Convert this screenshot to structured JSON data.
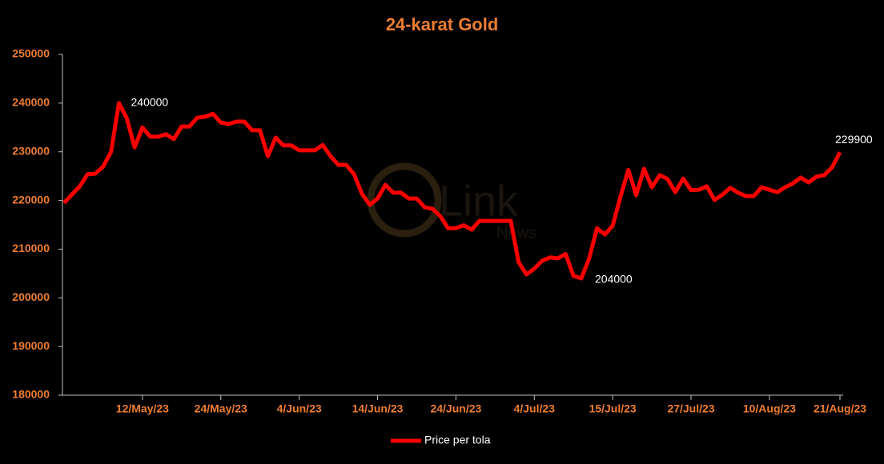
{
  "chart_data": {
    "type": "line",
    "title": "24-karat Gold",
    "watermark": {
      "main": "Link",
      "sub": "News"
    },
    "categories": [
      null,
      null,
      null,
      null,
      null,
      null,
      null,
      null,
      null,
      null,
      "12/May/23",
      null,
      null,
      null,
      null,
      null,
      null,
      null,
      null,
      null,
      "24/May/23",
      null,
      null,
      null,
      null,
      null,
      null,
      null,
      null,
      null,
      "4/Jun/23",
      null,
      null,
      null,
      null,
      null,
      null,
      null,
      null,
      null,
      "14/Jun/23",
      null,
      null,
      null,
      null,
      null,
      null,
      null,
      null,
      null,
      "24/Jun/23",
      null,
      null,
      null,
      null,
      null,
      null,
      null,
      null,
      null,
      "4/Jul/23",
      null,
      null,
      null,
      null,
      null,
      null,
      null,
      null,
      null,
      "15/Jul/23",
      null,
      null,
      null,
      null,
      null,
      null,
      null,
      null,
      null,
      "27/Jul/23",
      null,
      null,
      null,
      null,
      null,
      null,
      null,
      null,
      null,
      "10/Aug/23",
      null,
      null,
      null,
      null,
      null,
      null,
      null,
      null,
      "21/Aug/23"
    ],
    "series": [
      {
        "name": "Price per tola",
        "color": "#ff0000",
        "values": [
          219500,
          221200,
          222900,
          225400,
          225500,
          227000,
          230000,
          240000,
          236900,
          230900,
          235000,
          233100,
          233100,
          233600,
          232600,
          235200,
          235200,
          237000,
          237200,
          237800,
          236000,
          235700,
          236200,
          236200,
          234400,
          234400,
          229100,
          232900,
          231300,
          231300,
          230300,
          230300,
          230300,
          231400,
          229100,
          227300,
          227300,
          225400,
          221400,
          219100,
          220400,
          223200,
          221600,
          221600,
          220400,
          220400,
          218600,
          218300,
          216800,
          214300,
          214300,
          214900,
          214000,
          215800,
          215800,
          215800,
          215800,
          215800,
          207300,
          204800,
          206000,
          207600,
          208300,
          208100,
          209000,
          204500,
          204000,
          208100,
          214300,
          213000,
          214800,
          220800,
          226300,
          221100,
          226500,
          222700,
          225200,
          224400,
          221700,
          224500,
          222100,
          222200,
          222900,
          220100,
          221200,
          222600,
          221600,
          220900,
          220900,
          222700,
          222200,
          221700,
          222700,
          223500,
          224700,
          223700,
          224900,
          225200,
          226800,
          229900
        ]
      }
    ],
    "ylim": [
      180000,
      250000
    ],
    "yticks": [
      180000,
      190000,
      200000,
      210000,
      220000,
      230000,
      240000,
      250000
    ],
    "grid": false,
    "legend": "bottom"
  }
}
